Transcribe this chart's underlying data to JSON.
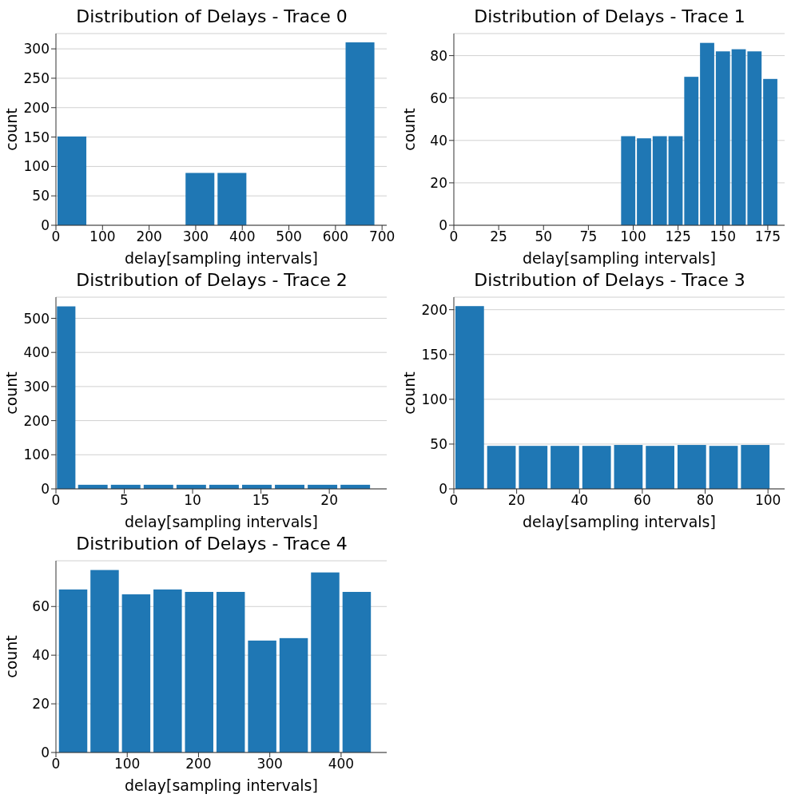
{
  "chart_data": [
    {
      "type": "histogram",
      "title": "Distribution of Delays - Trace 0",
      "xlabel": "delay[sampling intervals]",
      "ylabel": "count",
      "color": "#1f77b4",
      "grid": "y",
      "bins": [
        0,
        68.7,
        137.4,
        206.1,
        274.8,
        343.5,
        412.2,
        480.9,
        549.6,
        618.3,
        687
      ],
      "values": [
        151,
        0,
        0,
        0,
        89,
        89,
        0,
        0,
        0,
        311
      ],
      "xlim": [
        0,
        710
      ],
      "xticks": [
        0,
        100,
        200,
        300,
        400,
        500,
        600,
        700
      ],
      "ylim": [
        0,
        326
      ],
      "yticks": [
        0,
        50,
        100,
        150,
        200,
        250,
        300
      ]
    },
    {
      "type": "histogram",
      "title": "Distribution of Delays - Trace 1",
      "xlabel": "delay[sampling intervals]",
      "ylabel": "count",
      "color": "#1f77b4",
      "grid": "y",
      "bins": [
        92.8,
        101.6,
        110.4,
        119.2,
        128,
        136.8,
        145.6,
        154.4,
        163.2,
        172,
        180.8
      ],
      "values": [
        42,
        41,
        42,
        42,
        70,
        86,
        82,
        83,
        82,
        69
      ],
      "xlim": [
        0,
        184.4
      ],
      "xticks": [
        0,
        25,
        50,
        75,
        100,
        125,
        150,
        175
      ],
      "ylim": [
        0,
        90.4
      ],
      "yticks": [
        0,
        20,
        40,
        60,
        80
      ]
    },
    {
      "type": "histogram",
      "title": "Distribution of Delays - Trace 2",
      "xlabel": "delay[sampling intervals]",
      "ylabel": "count",
      "color": "#1f77b4",
      "grid": "y",
      "bins": [
        0,
        1.5,
        3.9,
        6.3,
        8.7,
        11.1,
        13.5,
        15.9,
        18.3,
        20.7,
        23.1
      ],
      "values": [
        535,
        12,
        12,
        12,
        12,
        12,
        12,
        12,
        12,
        12
      ],
      "xlim": [
        0,
        24.2
      ],
      "xticks": [
        0,
        5,
        10,
        15,
        20
      ],
      "ylim": [
        0,
        562
      ],
      "yticks": [
        0,
        100,
        200,
        300,
        400,
        500
      ]
    },
    {
      "type": "histogram",
      "title": "Distribution of Delays - Trace 3",
      "xlabel": "delay[sampling intervals]",
      "ylabel": "count",
      "color": "#1f77b4",
      "grid": "y",
      "bins": [
        0,
        10.1,
        20.2,
        30.3,
        40.4,
        50.5,
        60.6,
        70.7,
        80.8,
        90.9,
        101
      ],
      "values": [
        204,
        48,
        48,
        48,
        48,
        49,
        48,
        49,
        48,
        49
      ],
      "xlim": [
        0,
        105.3
      ],
      "xticks": [
        0,
        20,
        40,
        60,
        80,
        100
      ],
      "ylim": [
        0,
        214
      ],
      "yticks": [
        0,
        50,
        100,
        150,
        200
      ]
    },
    {
      "type": "histogram",
      "title": "Distribution of Delays - Trace 4",
      "xlabel": "delay[sampling intervals]",
      "ylabel": "count",
      "color": "#1f77b4",
      "grid": "y",
      "bins": [
        2,
        46.2,
        90.4,
        134.6,
        178.8,
        223,
        267.2,
        311.4,
        355.6,
        399.8,
        444
      ],
      "values": [
        67,
        75,
        65,
        67,
        66,
        66,
        46,
        47,
        74,
        66
      ],
      "xlim": [
        0,
        464
      ],
      "xticks": [
        0,
        100,
        200,
        300,
        400
      ],
      "ylim": [
        0,
        78.8
      ],
      "yticks": [
        0,
        20,
        40,
        60
      ]
    }
  ]
}
